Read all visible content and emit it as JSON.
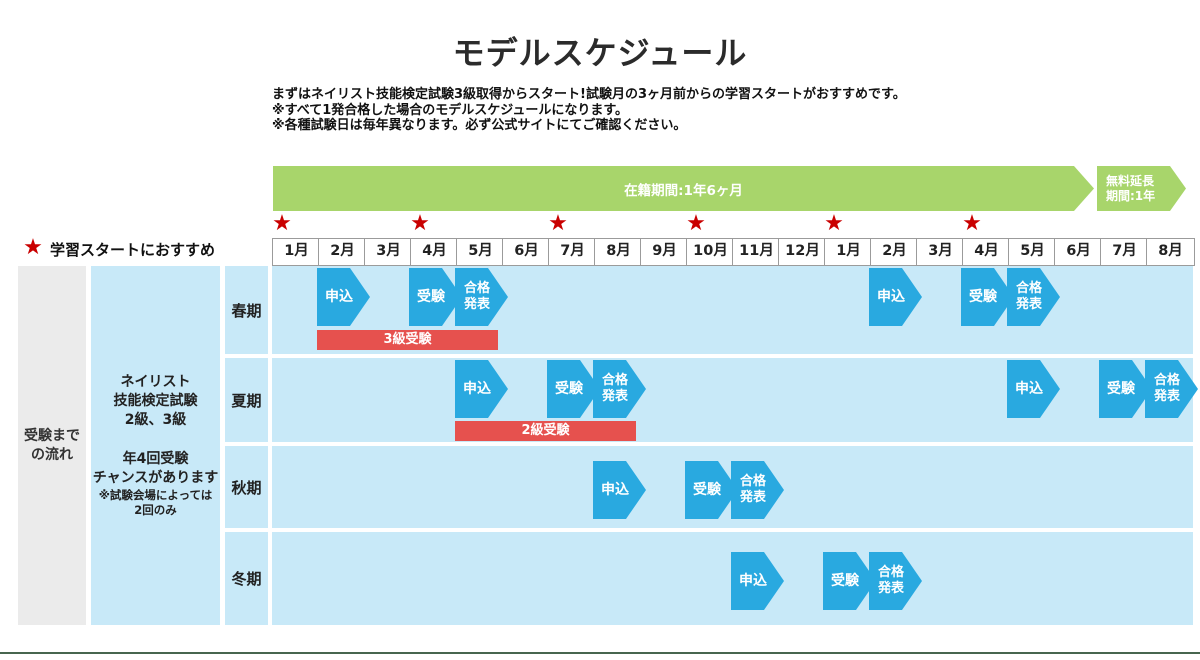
{
  "title": "モデルスケジュール",
  "intro_lines": [
    "まずはネイリスト技能検定試験3級取得からスタート!試験月の3ヶ月前からの学習スタートがおすすめです。",
    "※すべて1発合格した場合のモデルスケジュールになります。",
    "※各種試験日は毎年異なります。必ず公式サイトにてご確認ください。"
  ],
  "enrollment_banner": {
    "label": "在籍期間:1年6ヶ月"
  },
  "extension_banner": {
    "lines": [
      "無料延長",
      "期間:1年"
    ]
  },
  "legend": {
    "star": "★",
    "label": "学習スタートにおすすめ"
  },
  "months": [
    "1月",
    "2月",
    "3月",
    "4月",
    "5月",
    "6月",
    "7月",
    "8月",
    "9月",
    "10月",
    "11月",
    "12月",
    "1月",
    "2月",
    "3月",
    "4月",
    "5月",
    "6月",
    "7月",
    "8月"
  ],
  "recommended_start_month_indices": [
    0,
    3,
    6,
    9,
    12,
    15
  ],
  "left_panel": {
    "flow_line1": "受験まで",
    "flow_line2": "の流れ",
    "info_lines": [
      "ネイリスト",
      "技能検定試験",
      "2級、3級"
    ],
    "chance_lines": [
      "年4回受験",
      "チャンスがあります"
    ],
    "note_lines": [
      "※試験会場によっては",
      "2回のみ"
    ]
  },
  "seasons": [
    {
      "name": "春期",
      "badges": [
        {
          "type": "apply",
          "label": "申込",
          "lines": [
            "申込"
          ],
          "month_index": 1
        },
        {
          "type": "exam",
          "label": "受験",
          "lines": [
            "受験"
          ],
          "month_index": 3
        },
        {
          "type": "results",
          "label": "合格発表",
          "lines": [
            "合格",
            "発表"
          ],
          "month_index": 4
        },
        {
          "type": "apply",
          "label": "申込",
          "lines": [
            "申込"
          ],
          "month_index": 13
        },
        {
          "type": "exam",
          "label": "受験",
          "lines": [
            "受験"
          ],
          "month_index": 15
        },
        {
          "type": "results",
          "label": "合格発表",
          "lines": [
            "合格",
            "発表"
          ],
          "month_index": 16
        }
      ],
      "bar": {
        "id": "grade3-exam-period-bar",
        "label": "3級受験",
        "start_month_index": 1,
        "end_month_index": 4
      }
    },
    {
      "name": "夏期",
      "badges": [
        {
          "type": "apply",
          "label": "申込",
          "lines": [
            "申込"
          ],
          "month_index": 4
        },
        {
          "type": "exam",
          "label": "受験",
          "lines": [
            "受験"
          ],
          "month_index": 6
        },
        {
          "type": "results",
          "label": "合格発表",
          "lines": [
            "合格",
            "発表"
          ],
          "month_index": 7
        },
        {
          "type": "apply",
          "label": "申込",
          "lines": [
            "申込"
          ],
          "month_index": 16
        },
        {
          "type": "exam",
          "label": "受験",
          "lines": [
            "受験"
          ],
          "month_index": 18
        },
        {
          "type": "results",
          "label": "合格発表",
          "lines": [
            "合格",
            "発表"
          ],
          "month_index": 19
        }
      ],
      "bar": {
        "id": "grade2-exam-period-bar",
        "label": "2級受験",
        "start_month_index": 4,
        "end_month_index": 7
      }
    },
    {
      "name": "秋期",
      "badges": [
        {
          "type": "apply",
          "label": "申込",
          "lines": [
            "申込"
          ],
          "month_index": 7
        },
        {
          "type": "exam",
          "label": "受験",
          "lines": [
            "受験"
          ],
          "month_index": 9
        },
        {
          "type": "results",
          "label": "合格発表",
          "lines": [
            "合格",
            "発表"
          ],
          "month_index": 10
        }
      ],
      "bar": null
    },
    {
      "name": "冬期",
      "badges": [
        {
          "type": "apply",
          "label": "申込",
          "lines": [
            "申込"
          ],
          "month_index": 10
        },
        {
          "type": "exam",
          "label": "受験",
          "lines": [
            "受験"
          ],
          "month_index": 12
        },
        {
          "type": "results",
          "label": "合格発表",
          "lines": [
            "合格",
            "発表"
          ],
          "month_index": 13
        }
      ],
      "bar": null
    }
  ],
  "colors": {
    "banner_green": "#a8d56b",
    "badge_blue": "#29a9e0",
    "exam_bar_red": "#e6514e",
    "panel_blue": "#c8e9f8",
    "panel_gray": "#ebebeb",
    "star_red": "#c90000",
    "footer_line_green": "#47664f"
  }
}
